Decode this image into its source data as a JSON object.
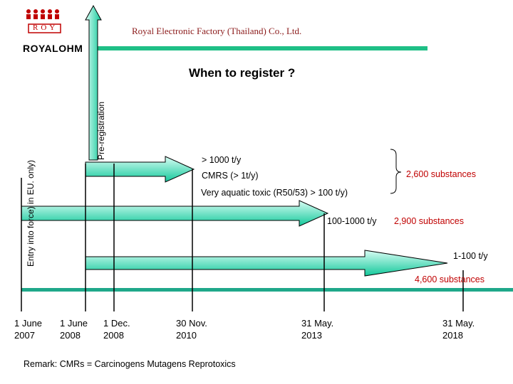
{
  "header": {
    "company": "Royal Electronic Factory (Thailand) Co., Ltd.",
    "logo_text": "ROYALOHM",
    "logo_mark": "ROY"
  },
  "diagram": {
    "title": "When to register ?",
    "pre_registration_label": "Pre-registration",
    "entry_into_force_label": "Entry into force) in EU. only)",
    "band1": {
      "line1": "> 1000 t/y",
      "line2": "CMRS (> 1t/y)",
      "line3": "Very aquatic toxic (R50/53) > 100 t/y)",
      "substances": "2,600 substances"
    },
    "band2": {
      "tonnage": "100-1000 t/y",
      "substances": "2,900 substances"
    },
    "band3": {
      "tonnage": "1-100 t/y",
      "substances": "4,600 substances"
    },
    "dates": [
      {
        "line1": "1 June",
        "line2": "2007"
      },
      {
        "line1": "1 June",
        "line2": "2008"
      },
      {
        "line1": "1 Dec.",
        "line2": "2008"
      },
      {
        "line1": "30 Nov.",
        "line2": "2010"
      },
      {
        "line1": "31 May.",
        "line2": "2013"
      },
      {
        "line1": "31 May.",
        "line2": "2018"
      }
    ],
    "remark": "Remark: CMRs = Carcinogens Mutagens Reprotoxics"
  },
  "colors": {
    "arrow_top": "#d9fdf4",
    "arrow_bottom": "#12c89a",
    "timeline": "#1fa88a",
    "accent_red": "#c00000",
    "company_text": "#8b1a1a"
  }
}
